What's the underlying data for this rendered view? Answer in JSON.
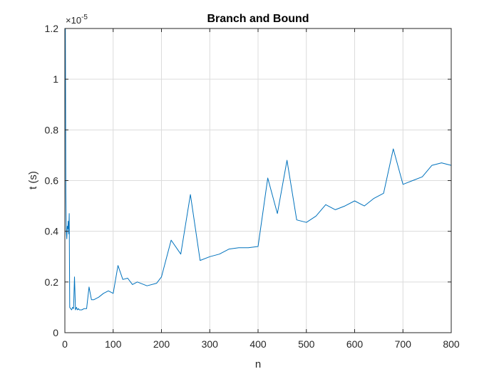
{
  "chart_data": {
    "type": "line",
    "title": "Branch and Bound",
    "xlabel": "n",
    "ylabel": "t (s)",
    "xlim": [
      0,
      800
    ],
    "ylim": [
      0,
      1.2
    ],
    "y_exponent_prefix": "×10",
    "y_exponent_value": "-5",
    "grid": true,
    "xticks": [
      "0",
      "100",
      "200",
      "300",
      "400",
      "500",
      "600",
      "700",
      "800"
    ],
    "yticks": [
      "0",
      "0.2",
      "0.4",
      "0.6",
      "0.8",
      "1",
      "1.2"
    ],
    "xtick_values": [
      0,
      100,
      200,
      300,
      400,
      500,
      600,
      700,
      800
    ],
    "ytick_values": [
      0,
      0.2,
      0.4,
      0.6,
      0.8,
      1.0,
      1.2
    ],
    "series": [
      {
        "color": "#0072BD",
        "x": [
          1,
          2,
          3,
          4,
          5,
          6,
          7,
          8,
          9,
          10,
          12,
          14,
          16,
          18,
          20,
          22,
          24,
          26,
          28,
          30,
          35,
          40,
          45,
          50,
          55,
          60,
          70,
          80,
          90,
          100,
          110,
          120,
          130,
          140,
          150,
          170,
          190,
          200,
          220,
          240,
          260,
          280,
          300,
          320,
          340,
          360,
          380,
          400,
          420,
          440,
          460,
          480,
          500,
          520,
          540,
          560,
          580,
          600,
          620,
          640,
          660,
          680,
          700,
          720,
          740,
          760,
          780,
          800
        ],
        "y": [
          1.2,
          0.55,
          0.4,
          0.37,
          0.42,
          0.41,
          0.44,
          0.39,
          0.47,
          0.1,
          0.095,
          0.09,
          0.1,
          0.095,
          0.22,
          0.09,
          0.1,
          0.09,
          0.095,
          0.09,
          0.09,
          0.095,
          0.095,
          0.18,
          0.13,
          0.13,
          0.14,
          0.155,
          0.165,
          0.155,
          0.265,
          0.21,
          0.215,
          0.19,
          0.2,
          0.185,
          0.195,
          0.22,
          0.365,
          0.31,
          0.545,
          0.285,
          0.3,
          0.31,
          0.33,
          0.335,
          0.335,
          0.34,
          0.61,
          0.47,
          0.68,
          0.445,
          0.435,
          0.46,
          0.505,
          0.485,
          0.5,
          0.52,
          0.5,
          0.53,
          0.55,
          0.725,
          0.585,
          0.6,
          0.615,
          0.66,
          0.67,
          0.66
        ]
      }
    ]
  }
}
